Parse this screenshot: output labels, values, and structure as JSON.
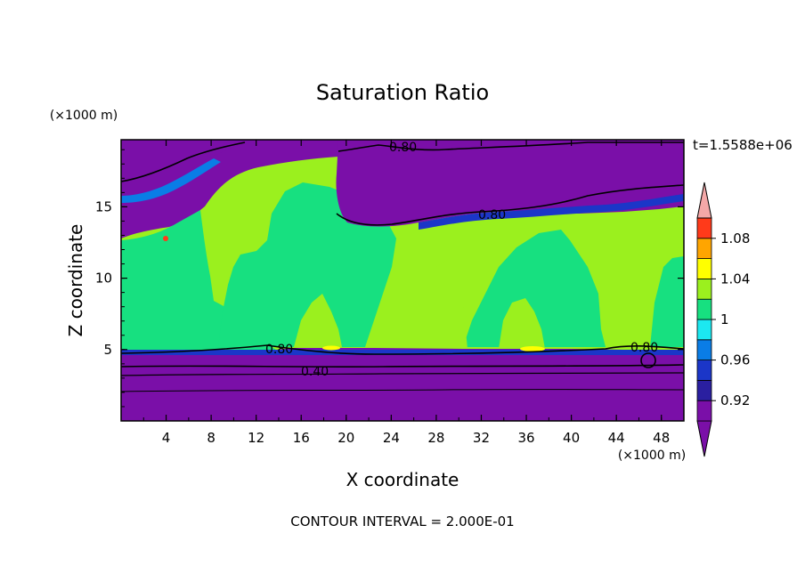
{
  "chart_data": {
    "type": "heatmap",
    "title": "Saturation Ratio",
    "xlabel": "X coordinate",
    "ylabel": "Z coordinate",
    "x_unit": "(×1000 m)",
    "y_unit": "(×1000 m)",
    "time_label": "t=1.5588e+06",
    "contour_interval": "CONTOUR INTERVAL = 2.000E-01",
    "xlim": [
      0,
      50
    ],
    "ylim": [
      0,
      19.7
    ],
    "x_ticks": [
      "4",
      "8",
      "12",
      "16",
      "20",
      "24",
      "28",
      "32",
      "36",
      "40",
      "44",
      "48"
    ],
    "y_ticks": [
      "5",
      "10",
      "15"
    ],
    "colorbar": {
      "levels": [
        0.9,
        0.92,
        0.94,
        0.96,
        0.98,
        1.0,
        1.02,
        1.04,
        1.06,
        1.08,
        1.1
      ],
      "tick_labels": [
        "0.92",
        "0.96",
        "1",
        "1.04",
        "1.08"
      ],
      "colors": [
        "#7a0fa8",
        "#2a1fa0",
        "#1b36c8",
        "#0a7de6",
        "#1ce8f0",
        "#17e080",
        "#9bf01e",
        "#ffff00",
        "#ffa500",
        "#ff3a1a",
        "#f4a8a8"
      ]
    },
    "contour_labels": [
      "0.80",
      "0.80",
      "0.80",
      "0.80",
      "0.40"
    ],
    "background_color": "#7a0fa8"
  }
}
